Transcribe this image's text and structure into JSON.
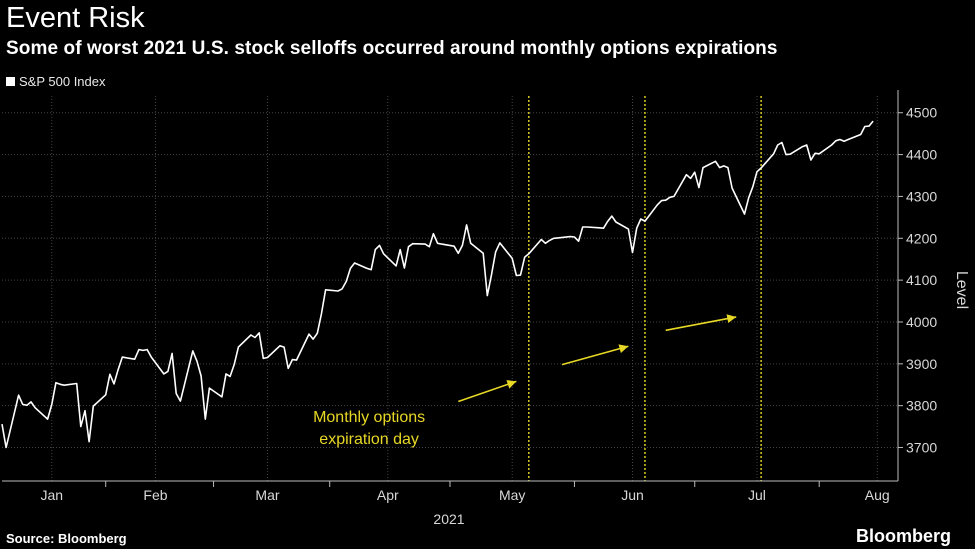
{
  "header": {
    "title": "Event Risk",
    "subtitle": "Some of worst 2021 U.S. stock selloffs occurred around monthly options expirations"
  },
  "footer": {
    "source": "Source: Bloomberg",
    "brand": "Bloomberg"
  },
  "colors": {
    "background": "#000000",
    "line": "#ffffff",
    "accent": "#e8d826",
    "grid": "#444444"
  },
  "chart_data": {
    "type": "line",
    "title": "Event Risk",
    "subtitle": "Some of worst 2021 U.S. stock selloffs occurred around monthly options expirations",
    "ylabel": "Level",
    "xlabel": "2021",
    "legend": "top-left",
    "grid": true,
    "ylim": [
      3620,
      4540
    ],
    "xlim": [
      0,
      216
    ],
    "y_ticks": [
      3700,
      3800,
      3900,
      4000,
      4100,
      4200,
      4300,
      4400,
      4500
    ],
    "x_ticks": [
      {
        "label": "Jan",
        "day": 12
      },
      {
        "label": "Feb",
        "day": 37
      },
      {
        "label": "Mar",
        "day": 64
      },
      {
        "label": "Apr",
        "day": 93
      },
      {
        "label": "May",
        "day": 123
      },
      {
        "label": "Jun",
        "day": 152
      },
      {
        "label": "Jul",
        "day": 182
      },
      {
        "label": "Aug",
        "day": 211
      }
    ],
    "series": [
      {
        "name": "S&P 500 Index",
        "x": [
          0,
          1,
          4,
          5,
          6,
          7,
          8,
          11,
          12,
          13,
          14,
          15,
          18,
          19,
          20,
          21,
          22,
          25,
          26,
          27,
          28,
          29,
          32,
          33,
          34,
          35,
          36,
          39,
          40,
          41,
          42,
          43,
          46,
          47,
          48,
          49,
          50,
          53,
          54,
          55,
          56,
          57,
          60,
          61,
          62,
          63,
          64,
          67,
          68,
          69,
          70,
          71,
          74,
          75,
          76,
          77,
          78,
          81,
          82,
          83,
          84,
          85,
          88,
          89,
          90,
          91,
          92,
          95,
          96,
          97,
          98,
          99,
          102,
          103,
          104,
          105,
          106,
          109,
          110,
          111,
          112,
          113,
          116,
          117,
          118,
          119,
          120,
          123,
          124,
          125,
          126,
          127,
          130,
          131,
          132,
          133,
          134,
          137,
          138,
          139,
          140,
          141,
          144,
          145,
          146,
          147,
          148,
          151,
          152,
          153,
          154,
          155,
          158,
          159,
          160,
          161,
          162,
          165,
          166,
          167,
          168,
          169,
          172,
          173,
          174,
          175,
          176,
          179,
          180,
          181,
          182,
          183,
          186,
          187,
          188,
          189,
          190,
          193,
          194,
          195,
          196,
          197,
          200,
          201,
          202,
          203,
          204,
          207,
          208,
          209,
          210
        ],
        "y": [
          3756,
          3700,
          3825,
          3803,
          3801,
          3809,
          3795,
          3768,
          3803,
          3855,
          3851,
          3849,
          3853,
          3750,
          3788,
          3714,
          3799,
          3826,
          3875,
          3852,
          3886,
          3916,
          3911,
          3934,
          3932,
          3934,
          3916,
          3876,
          3882,
          3925,
          3829,
          3811,
          3931,
          3906,
          3871,
          3768,
          3842,
          3821,
          3876,
          3870,
          3899,
          3940,
          3969,
          3963,
          3974,
          3913,
          3915,
          3943,
          3940,
          3889,
          3910,
          3909,
          3971,
          3959,
          3973,
          4019,
          4077,
          4074,
          4079,
          4097,
          4128,
          4141,
          4128,
          4125,
          4173,
          4183,
          4163,
          4134,
          4173,
          4129,
          4180,
          4187,
          4186,
          4180,
          4211,
          4188,
          4186,
          4181,
          4164,
          4183,
          4232,
          4188,
          4164,
          4063,
          4113,
          4167,
          4189,
          4152,
          4111,
          4112,
          4155,
          4163,
          4197,
          4188,
          4195,
          4200,
          4201,
          4204,
          4203,
          4193,
          4227,
          4227,
          4225,
          4224,
          4240,
          4253,
          4239,
          4222,
          4166,
          4224,
          4246,
          4241,
          4280,
          4290,
          4291,
          4298,
          4300,
          4352,
          4343,
          4358,
          4321,
          4369,
          4384,
          4369,
          4373,
          4369,
          4320,
          4258,
          4297,
          4323,
          4359,
          4368,
          4402,
          4423,
          4429,
          4400,
          4401,
          4419,
          4423,
          4387,
          4403,
          4402,
          4423,
          4433,
          4436,
          4432,
          4436,
          4448,
          4467,
          4468,
          4480
        ]
      }
    ],
    "expiration_days": [
      127,
      155,
      183
    ],
    "annotation": "Monthly options\nexpiration day"
  }
}
